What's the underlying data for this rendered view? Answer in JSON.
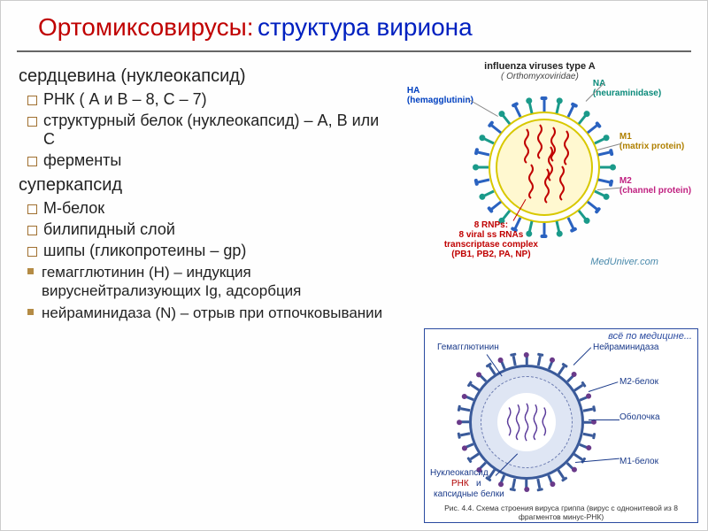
{
  "title": {
    "part1": "Ортомиксовирусы:",
    "part2": "структура вириона"
  },
  "body": {
    "section1": "сердцевина (нуклеокапсид)",
    "s1_items": [
      "РНК ( А и В – 8, С – 7)",
      "структурный белок (нуклеокапсид) – А, В или С",
      "ферменты"
    ],
    "section2": "суперкапсид",
    "s2_items": [
      "М-белок",
      "билипидный слой",
      "шипы (гликопротеины – gp)"
    ],
    "s2_sub": [
      "гемагглютинин (H) – индукция вируснейтрализующих Ig, адсорбция",
      "нейраминидаза (N) – отрыв при отпочковывании"
    ]
  },
  "diag1": {
    "title": "influenza viruses type A",
    "subtitle": "( Orthomyxoviridae)",
    "labels": {
      "ha": "HA\n(hemagglutinin)",
      "na": "NA\n(neuraminidase)",
      "m1": "M1\n(matrix protein)",
      "m2": "M2\n(channel protein)",
      "rnp": "8 RNPs:\n8 viral ss RNAs\ntranscriptase complex\n(PB1, PB2, PA, NP)"
    },
    "colors": {
      "ha": "#0a8a7a",
      "na": "#0040c0",
      "m1": "#b08000",
      "m2": "#c02080",
      "envelope": "#d8c800",
      "rnp": "#c00000"
    },
    "watermark": "MedUniver.com"
  },
  "diag2": {
    "header": "всё по медицине...",
    "labels": {
      "hemag": "Гемагглютинин",
      "neira": "Нейраминидаза",
      "m2": "М2-белок",
      "obol": "Оболочка",
      "m1": "М1-белок",
      "nucleo": "Нуклеокапсид",
      "rnk": "РНК",
      "caps": "капсидные белки",
      "and": "и"
    },
    "caption": "Рис. 4.4. Схема строения вируса гриппа (вирус с однонитевой из 8 фрагментов минус-РНК)",
    "colors": {
      "outline": "#2a4aa0",
      "envelope": "#3a5a9a",
      "text": "#1a3a8a",
      "red": "#b00000"
    }
  }
}
